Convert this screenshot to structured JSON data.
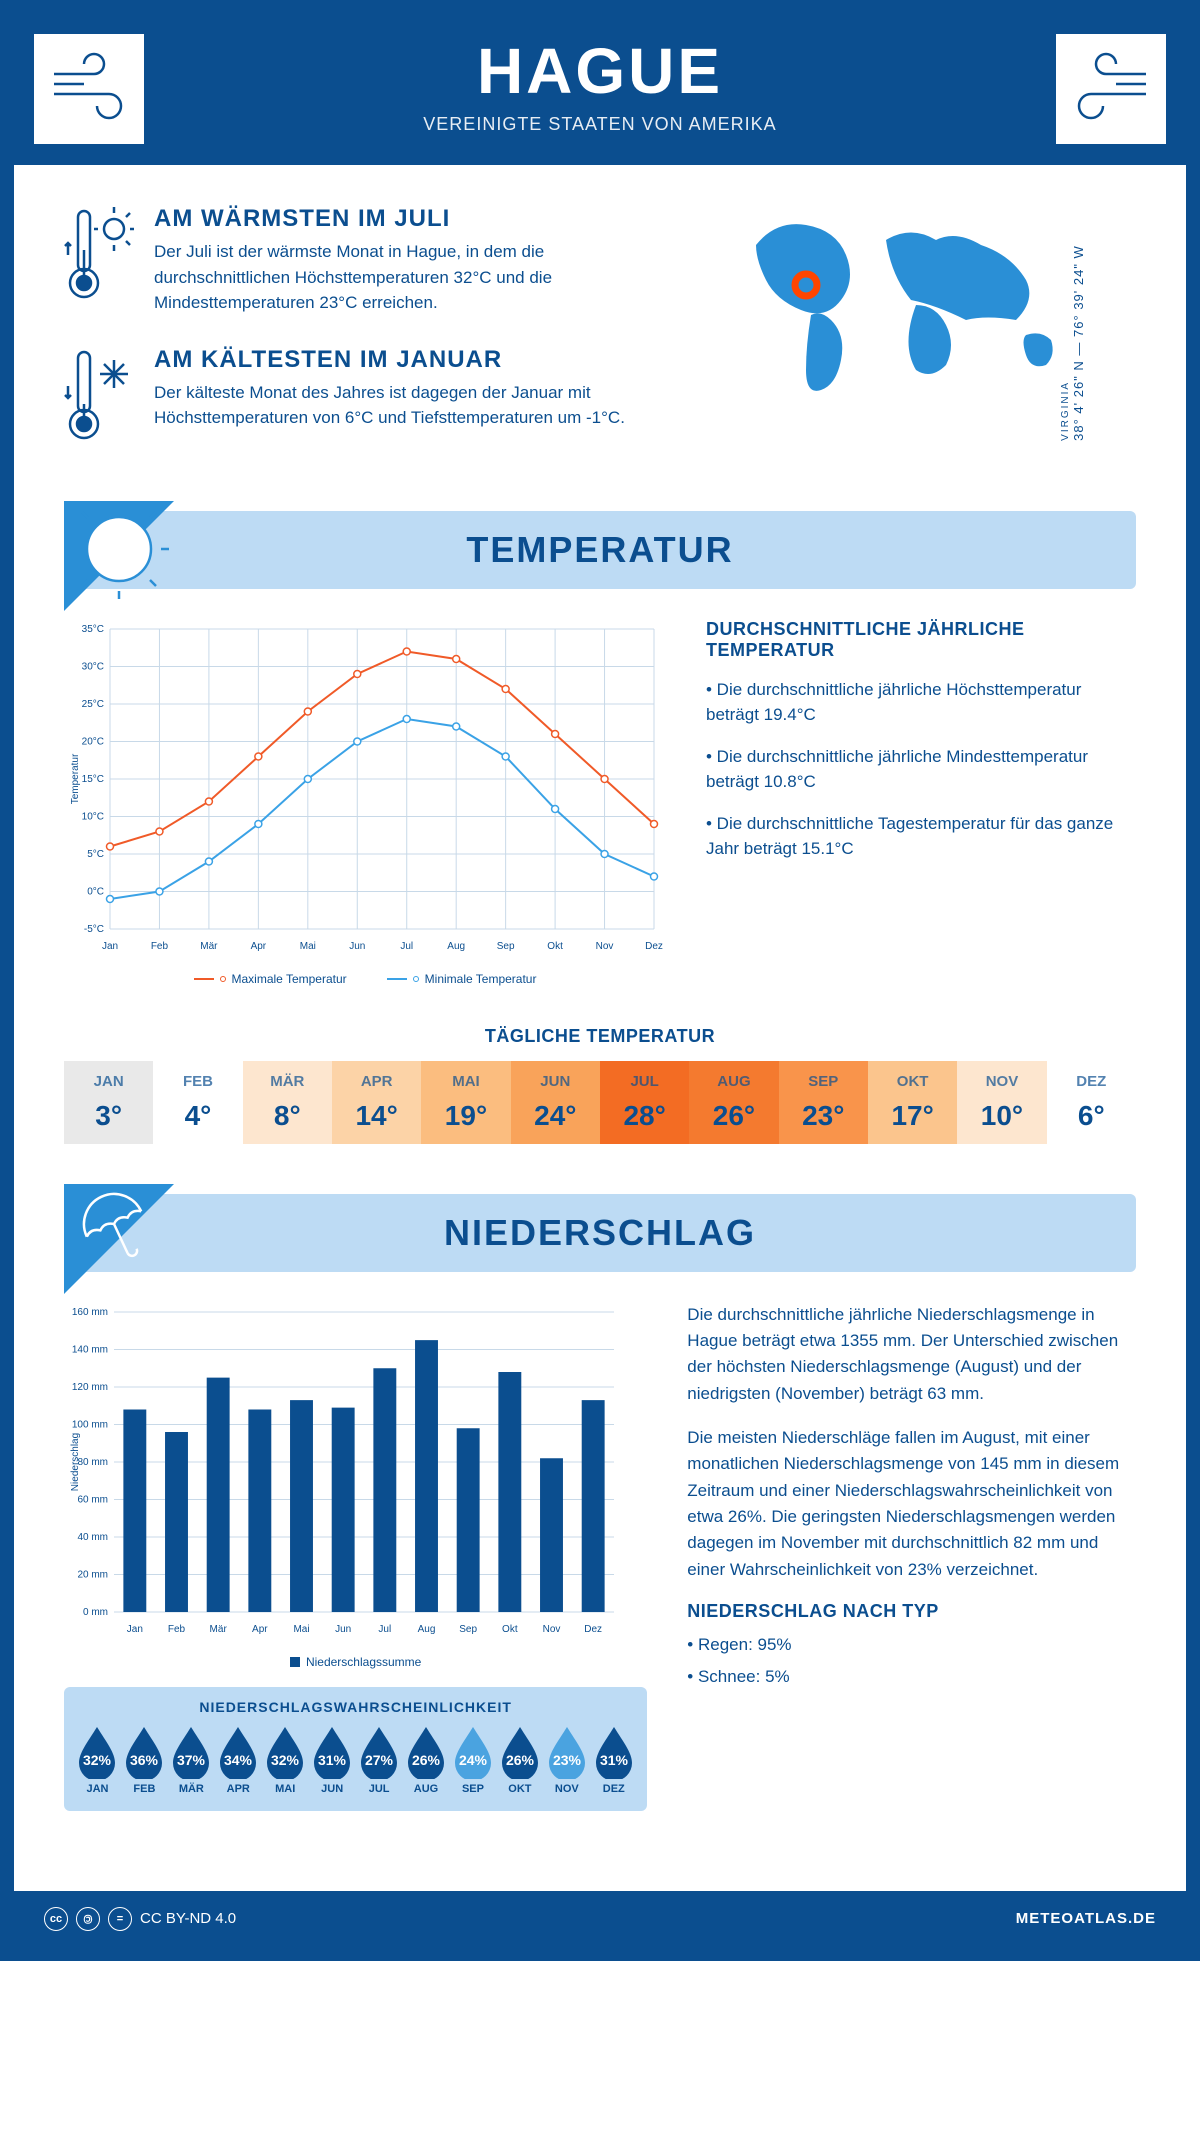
{
  "header": {
    "title": "HAGUE",
    "subtitle": "VEREINIGTE STAATEN VON AMERIKA"
  },
  "coords": {
    "lat": "38° 4' 26\" N — 76° 39' 24\" W",
    "region": "VIRGINIA"
  },
  "facts": {
    "warm": {
      "title": "AM WÄRMSTEN IM JULI",
      "text": "Der Juli ist der wärmste Monat in Hague, in dem die durchschnittlichen Höchsttemperaturen 32°C und die Mindesttemperaturen 23°C erreichen."
    },
    "cold": {
      "title": "AM KÄLTESTEN IM JANUAR",
      "text": "Der kälteste Monat des Jahres ist dagegen der Januar mit Höchsttemperaturen von 6°C und Tiefsttemperaturen um -1°C."
    }
  },
  "temperature_section": {
    "heading": "TEMPERATUR",
    "info_title": "DURCHSCHNITTLICHE JÄHRLICHE TEMPERATUR",
    "bullets": [
      "• Die durchschnittliche jährliche Höchsttemperatur beträgt 19.4°C",
      "• Die durchschnittliche jährliche Mindesttemperatur beträgt 10.8°C",
      "• Die durchschnittliche Tagestemperatur für das ganze Jahr beträgt 15.1°C"
    ],
    "chart": {
      "type": "line",
      "months": [
        "Jan",
        "Feb",
        "Mär",
        "Apr",
        "Mai",
        "Jun",
        "Jul",
        "Aug",
        "Sep",
        "Okt",
        "Nov",
        "Dez"
      ],
      "max_series": {
        "label": "Maximale Temperatur",
        "color": "#f05a28",
        "values": [
          6,
          8,
          12,
          18,
          24,
          29,
          32,
          31,
          27,
          21,
          15,
          9
        ]
      },
      "min_series": {
        "label": "Minimale Temperatur",
        "color": "#3aa2e6",
        "values": [
          -1,
          0,
          4,
          9,
          15,
          20,
          23,
          22,
          18,
          11,
          5,
          2
        ]
      },
      "ylim": [
        -5,
        35
      ],
      "ytick_step": 5,
      "y_axis_label": "Temperatur",
      "grid_color": "#c8d9e8",
      "background": "#ffffff",
      "axis_color": "#0b4e8f",
      "marker": "circle",
      "line_width": 2
    },
    "daily_title": "TÄGLICHE TEMPERATUR",
    "daily": {
      "months": [
        "JAN",
        "FEB",
        "MÄR",
        "APR",
        "MAI",
        "JUN",
        "JUL",
        "AUG",
        "SEP",
        "OKT",
        "NOV",
        "DEZ"
      ],
      "values": [
        "3°",
        "4°",
        "8°",
        "14°",
        "19°",
        "24°",
        "28°",
        "26°",
        "23°",
        "17°",
        "10°",
        "6°"
      ],
      "bg_colors": [
        "#e9e9e9",
        "#ffffff",
        "#fde6cf",
        "#fcd3a7",
        "#fbbd7f",
        "#f9a35a",
        "#f36c23",
        "#f47a2f",
        "#f9944b",
        "#fbc58d",
        "#fde6cf",
        "#ffffff"
      ]
    }
  },
  "precip_section": {
    "heading": "NIEDERSCHLAG",
    "chart": {
      "type": "bar",
      "months": [
        "Jan",
        "Feb",
        "Mär",
        "Apr",
        "Mai",
        "Jun",
        "Jul",
        "Aug",
        "Sep",
        "Okt",
        "Nov",
        "Dez"
      ],
      "values": [
        108,
        96,
        125,
        108,
        113,
        109,
        130,
        145,
        98,
        128,
        82,
        113
      ],
      "ylim": [
        0,
        160
      ],
      "ytick_step": 20,
      "y_axis_label": "Niederschlag",
      "bar_color": "#0b4e8f",
      "bar_width": 0.55,
      "grid_color": "#c8d9e8",
      "legend_label": "Niederschlagssumme"
    },
    "text1": "Die durchschnittliche jährliche Niederschlagsmenge in Hague beträgt etwa 1355 mm. Der Unterschied zwischen der höchsten Niederschlagsmenge (August) und der niedrigsten (November) beträgt 63 mm.",
    "text2": "Die meisten Niederschläge fallen im August, mit einer monatlichen Niederschlagsmenge von 145 mm in diesem Zeitraum und einer Niederschlagswahrscheinlichkeit von etwa 26%. Die geringsten Niederschlagsmengen werden dagegen im November mit durchschnittlich 82 mm und einer Wahrscheinlichkeit von 23% verzeichnet.",
    "type_title": "NIEDERSCHLAG NACH TYP",
    "type_bullets": [
      "• Regen: 95%",
      "• Schnee: 5%"
    ],
    "prob": {
      "title": "NIEDERSCHLAGSWAHRSCHEINLICHKEIT",
      "months": [
        "JAN",
        "FEB",
        "MÄR",
        "APR",
        "MAI",
        "JUN",
        "JUL",
        "AUG",
        "SEP",
        "OKT",
        "NOV",
        "DEZ"
      ],
      "values": [
        "32%",
        "36%",
        "37%",
        "34%",
        "32%",
        "31%",
        "27%",
        "26%",
        "24%",
        "26%",
        "23%",
        "31%"
      ],
      "colors": [
        "#0b4e8f",
        "#0b4e8f",
        "#0b4e8f",
        "#0b4e8f",
        "#0b4e8f",
        "#0b4e8f",
        "#0b4e8f",
        "#0b4e8f",
        "#4aa3e0",
        "#0b4e8f",
        "#4aa3e0",
        "#0b4e8f"
      ]
    }
  },
  "footer": {
    "license": "CC BY-ND 4.0",
    "site": "METEOATLAS.DE"
  }
}
